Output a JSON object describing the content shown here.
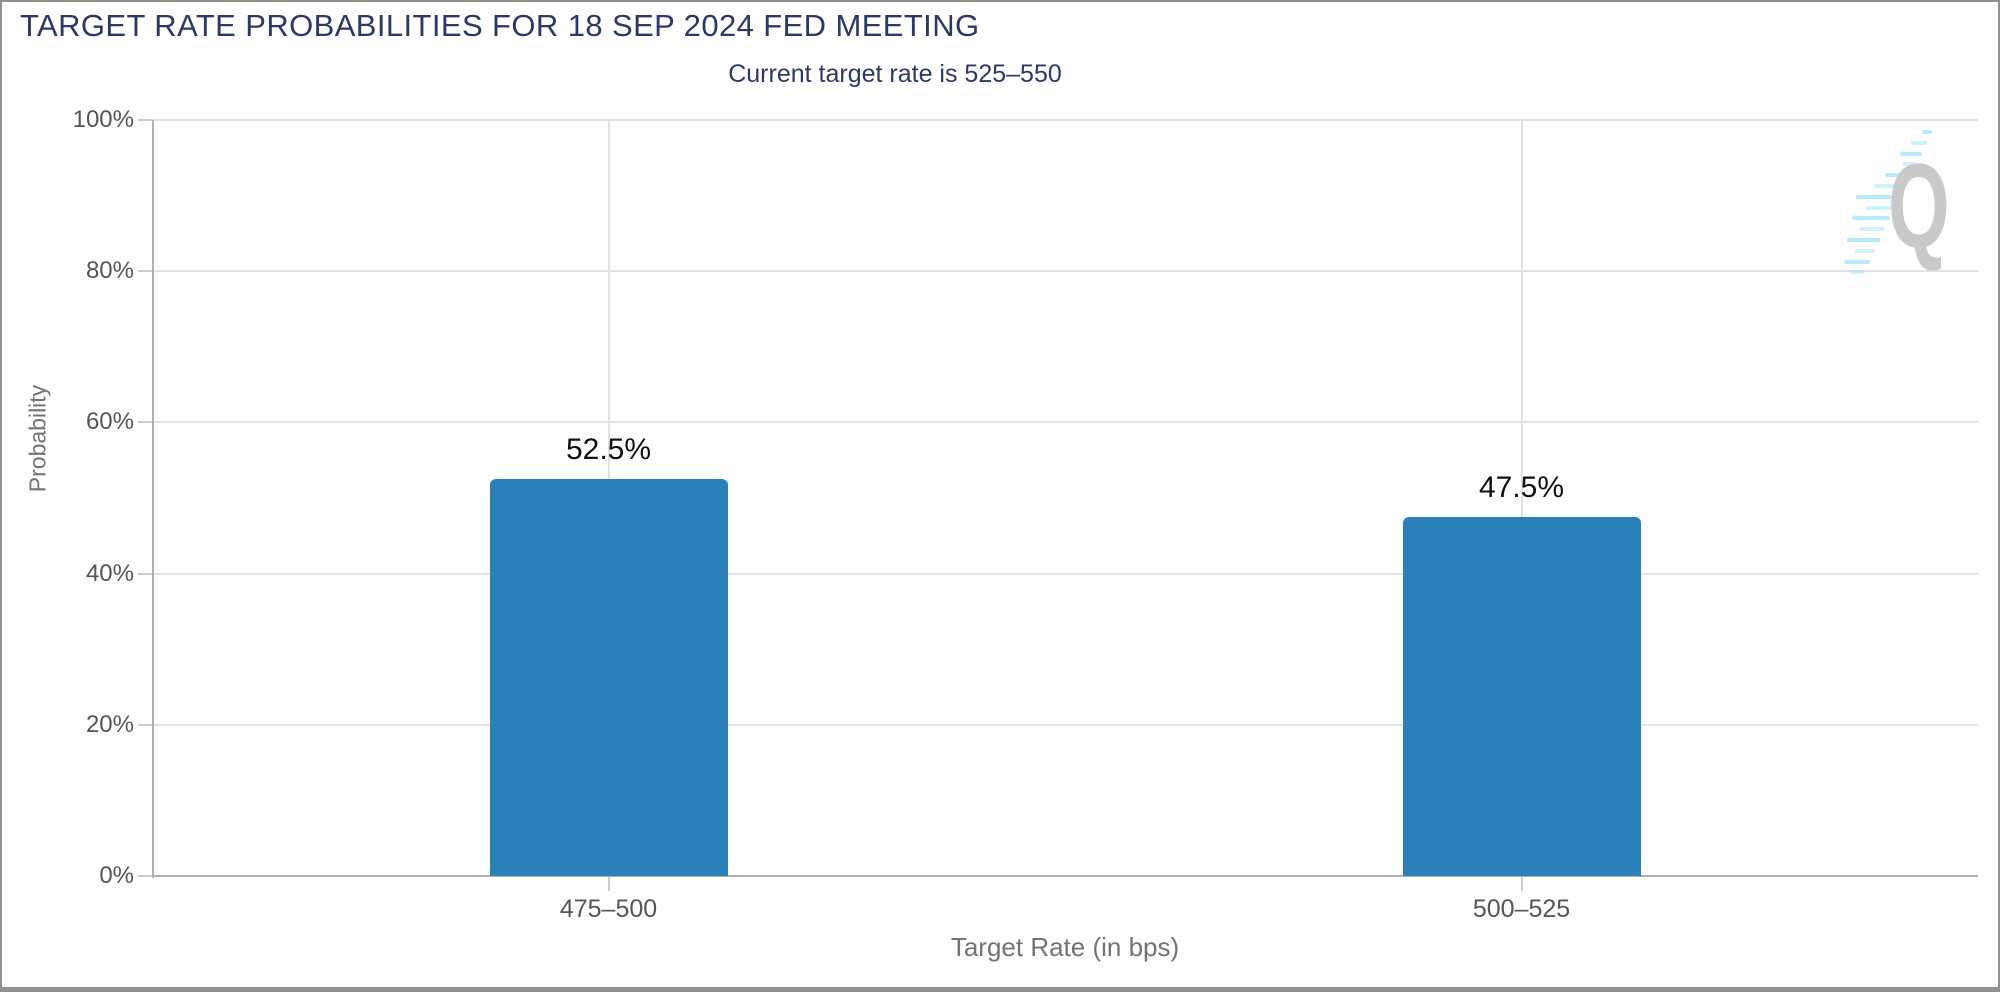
{
  "header": {
    "title": "TARGET RATE PROBABILITIES FOR 18 SEP 2024 FED MEETING",
    "subtitle": "Current target rate is 525–550"
  },
  "watermark": {
    "letter": "Q"
  },
  "colors": {
    "bar": "#2a80b9",
    "title_text": "#2b3a64",
    "grid": "#e2e2e2",
    "axis": "#b0b0b0",
    "tick": "#cccccc",
    "tick_label": "#565656",
    "value_label": "#111111",
    "axis_title": "#737373",
    "watermark_q": "#c9c9c9",
    "watermark_streak": "#aae8f8",
    "frame_border": "#909090"
  },
  "chart_data": {
    "type": "bar",
    "title": "TARGET RATE PROBABILITIES FOR 18 SEP 2024 FED MEETING",
    "subtitle": "Current target rate is 525–550",
    "categories": [
      "475–500",
      "500–525"
    ],
    "values": [
      52.5,
      47.5
    ],
    "value_labels": [
      "52.5%",
      "47.5%"
    ],
    "xlabel": "Target Rate (in bps)",
    "ylabel": "Probability",
    "ylim": [
      0,
      100
    ],
    "yticks": [
      "0%",
      "20%",
      "40%",
      "60%",
      "80%",
      "100%"
    ],
    "grid": true,
    "legend": false,
    "bar_color": "#2a80b9"
  }
}
